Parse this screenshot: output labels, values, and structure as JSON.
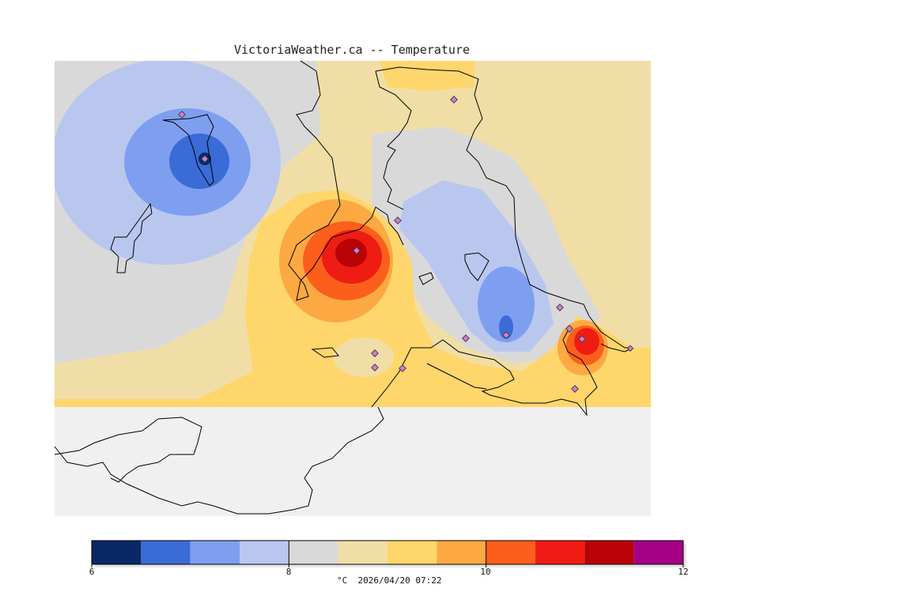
{
  "title": "VictoriaWeather.ca -- Temperature",
  "caption": "°C  2026/04/20 07:22",
  "legend": {
    "ticks": [
      {
        "value": 6,
        "label": "6"
      },
      {
        "value": 8,
        "label": "8"
      },
      {
        "value": 10,
        "label": "10"
      },
      {
        "value": 12,
        "label": "12"
      }
    ],
    "min": 6,
    "max": 12,
    "bins": [
      {
        "from": 6.0,
        "to": 6.5,
        "color": "#0b2866"
      },
      {
        "from": 6.5,
        "to": 7.0,
        "color": "#3a6bd6"
      },
      {
        "from": 7.0,
        "to": 7.5,
        "color": "#7e9ff0"
      },
      {
        "from": 7.5,
        "to": 8.0,
        "color": "#b9c7ef"
      },
      {
        "from": 8.0,
        "to": 8.5,
        "color": "#d9d9d9"
      },
      {
        "from": 8.5,
        "to": 9.0,
        "color": "#f1dea6"
      },
      {
        "from": 9.0,
        "to": 9.5,
        "color": "#fed66b"
      },
      {
        "from": 9.5,
        "to": 10.0,
        "color": "#fca942"
      },
      {
        "from": 10.0,
        "to": 10.5,
        "color": "#fc5e1c"
      },
      {
        "from": 10.5,
        "to": 11.0,
        "color": "#ef1c14"
      },
      {
        "from": 11.0,
        "to": 11.5,
        "color": "#b90307"
      },
      {
        "from": 11.5,
        "to": 12.0,
        "color": "#a40088"
      }
    ]
  },
  "colors": {
    "background": "#f0f0f0",
    "coastline": "#000000",
    "station_marker": "#d67ad6"
  },
  "map": {
    "hotspots": [
      {
        "name": "west-cold-center",
        "temperature_c": 6.3
      },
      {
        "name": "central-warm-center",
        "temperature_c": 11.2
      },
      {
        "name": "east-cold-center",
        "temperature_c": 6.8
      },
      {
        "name": "southeast-warm-center",
        "temperature_c": 11.0
      }
    ]
  }
}
